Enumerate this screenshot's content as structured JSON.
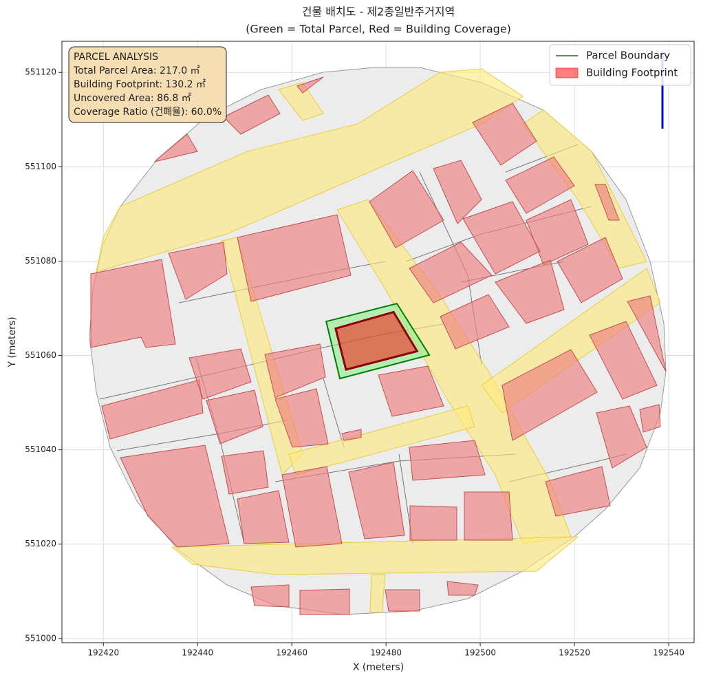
{
  "chart_data": {
    "type": "map",
    "title": "건물 배치도 - 제2종일반주거지역",
    "subtitle": "(Green = Total Parcel, Red = Building Coverage)",
    "x_label": "X (meters)",
    "y_label": "Y (meters)",
    "xlim": [
      192411.2,
      192545.4
    ],
    "ylim": [
      550999.1,
      551126.6
    ],
    "xticks": [
      192420,
      192440,
      192460,
      192480,
      192500,
      192520,
      192540
    ],
    "yticks": [
      551000,
      551020,
      551040,
      551060,
      551080,
      551100,
      551120
    ],
    "grid": true,
    "legend": "upper right",
    "annotation": [
      "PARCEL ANALYSIS",
      "Total Parcel Area: 217.0 ㎡",
      "Building Footprint: 130.2 ㎡",
      "Uncovered Area: 86.8 ㎡",
      "Coverage Ratio (건폐율): 60.0%"
    ],
    "series": [
      {
        "name": "Parcel Boundary",
        "color": "#008000",
        "fill": "#90ee90",
        "x": [
          192467.3,
          192482.3,
          192489.2,
          192470.2
        ],
        "y": [
          551067.2,
          551071.0,
          551060.1,
          551055.1
        ]
      },
      {
        "name": "Building Footprint",
        "color": "#ff0000",
        "edgecolor": "#8b0000",
        "x": [
          192469.3,
          192481.6,
          192486.6,
          192471.5
        ],
        "y": [
          551065.7,
          551069.2,
          551060.9,
          551057.0
        ]
      }
    ]
  }
}
